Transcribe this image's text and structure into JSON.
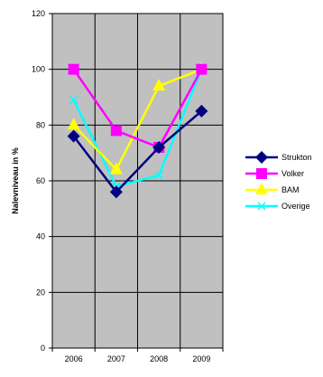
{
  "chart_data": {
    "type": "line",
    "x": [
      "2006",
      "2007",
      "2008",
      "2009"
    ],
    "ylabel": "Nalevniveau in %",
    "ylim": [
      0,
      120
    ],
    "yticks": [
      0,
      20,
      40,
      60,
      80,
      100,
      120
    ],
    "grid": true,
    "legend": "right",
    "plot_background": "#c0c0c0",
    "series": [
      {
        "name": "Strukton",
        "values": [
          76,
          56,
          72,
          85
        ],
        "color": "#000080",
        "marker": "diamond"
      },
      {
        "name": "Volker",
        "values": [
          100,
          78,
          72,
          100
        ],
        "color": "#ff00ff",
        "marker": "square"
      },
      {
        "name": "BAM",
        "values": [
          80,
          64,
          94,
          100
        ],
        "color": "#ffff00",
        "marker": "triangle"
      },
      {
        "name": "Overige",
        "values": [
          89,
          58,
          62,
          100
        ],
        "color": "#00ffff",
        "marker": "x"
      }
    ]
  }
}
